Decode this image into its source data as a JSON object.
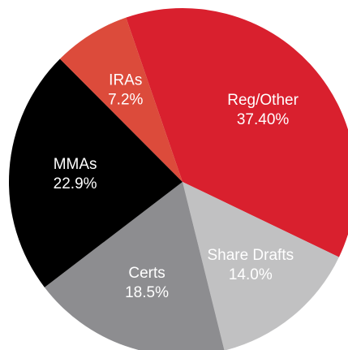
{
  "chart_data": {
    "type": "pie",
    "categories": [
      "Reg/Other",
      "Share Drafts",
      "Certs",
      "MMAs",
      "IRAs"
    ],
    "values": [
      37.4,
      14.0,
      18.5,
      22.9,
      7.2
    ],
    "value_labels": [
      "37.40%",
      "14.0%",
      "18.5%",
      "22.9%",
      "7.2%"
    ],
    "colors": [
      "#d9202e",
      "#c1c1c2",
      "#8d8d90",
      "#000000",
      "#dc4b3b"
    ]
  }
}
